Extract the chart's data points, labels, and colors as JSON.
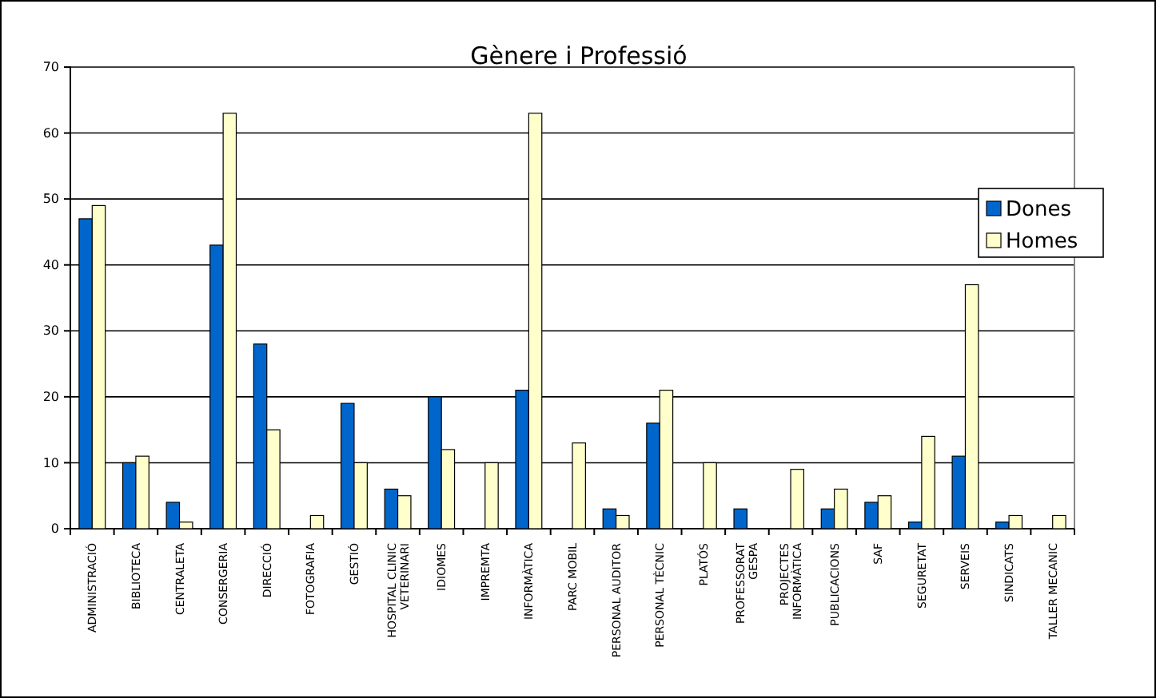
{
  "chart_data": {
    "type": "bar",
    "title": "Gènere i Professió",
    "categories": [
      "ADMINISTRACIÓ",
      "BIBLIOTECA",
      "CENTRALETA",
      "CONSERGERIA",
      "DIRECCIÓ",
      "FOTOGRAFIA",
      "GESTIÓ",
      "HOSPITAL CLINIC\nVETERINARI",
      "IDIOMES",
      "IMPREMTA",
      "INFORMÀTICA",
      "PARC MOBIL",
      "PERSONAL AUDITOR",
      "PERSONAL TÈCNIC",
      "PLATÓS",
      "PROFESSORAT\nGESPA",
      "PROJECTES\nINFORMÀTICA",
      "PUBLICACIONS",
      "SAF",
      "SEGURETAT",
      "SERVEIS",
      "SINDICATS",
      "TALLER MECANIC"
    ],
    "series": [
      {
        "name": "Dones",
        "color": "#0066cc",
        "values": [
          47,
          10,
          4,
          43,
          28,
          0,
          19,
          6,
          20,
          0,
          21,
          0,
          3,
          16,
          0,
          3,
          0,
          3,
          4,
          1,
          11,
          1,
          0
        ]
      },
      {
        "name": "Homes",
        "color": "#ffffcc",
        "values": [
          49,
          11,
          1,
          63,
          15,
          2,
          10,
          5,
          12,
          10,
          63,
          13,
          2,
          21,
          10,
          0,
          9,
          6,
          5,
          14,
          37,
          2,
          2
        ]
      }
    ],
    "ylim": [
      0,
      70
    ],
    "yticks": [
      0,
      10,
      20,
      30,
      40,
      50,
      60,
      70
    ],
    "grid": "y",
    "legend": "right"
  }
}
